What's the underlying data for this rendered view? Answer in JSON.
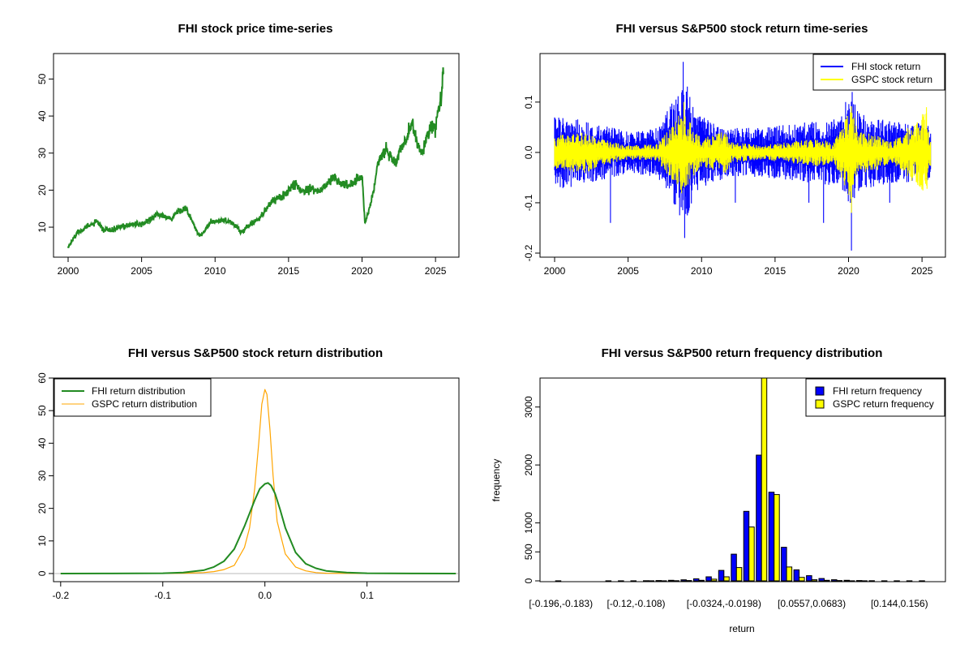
{
  "chart_data": [
    {
      "type": "line",
      "title": "FHI stock price time-series",
      "xlabel": "",
      "ylabel": "",
      "xlim": [
        2000,
        2025.6
      ],
      "ylim": [
        3,
        56
      ],
      "x_ticks": [
        2000,
        2005,
        2010,
        2015,
        2020,
        2025
      ],
      "y_ticks": [
        10,
        20,
        30,
        40,
        50
      ],
      "series": [
        {
          "color": "#228B22",
          "x": [
            2000.0,
            2000.3,
            2000.6,
            2001.0,
            2001.5,
            2002.0,
            2002.4,
            2002.7,
            2003.0,
            2003.5,
            2004.0,
            2004.5,
            2005.0,
            2005.5,
            2006.0,
            2006.5,
            2007.0,
            2007.5,
            2008.0,
            2008.4,
            2008.8,
            2009.0,
            2009.3,
            2009.6,
            2010.0,
            2010.5,
            2011.0,
            2011.5,
            2011.8,
            2012.0,
            2012.5,
            2013.0,
            2013.5,
            2014.0,
            2014.5,
            2015.0,
            2015.5,
            2016.0,
            2016.5,
            2017.0,
            2017.5,
            2018.0,
            2018.5,
            2019.0,
            2019.5,
            2020.0,
            2020.2,
            2020.5,
            2020.8,
            2021.0,
            2021.3,
            2021.6,
            2022.0,
            2022.3,
            2022.6,
            2023.0,
            2023.4,
            2023.7,
            2024.0,
            2024.3,
            2024.6,
            2025.0,
            2025.2,
            2025.4,
            2025.55
          ],
          "y": [
            4.5,
            6.5,
            8.5,
            9.5,
            10.5,
            11.5,
            9.0,
            9.5,
            9.0,
            10.0,
            10.5,
            11.0,
            10.5,
            12.0,
            13.5,
            13.0,
            12.0,
            14.5,
            15.0,
            12.0,
            8.5,
            7.5,
            9.0,
            11.0,
            11.5,
            12.0,
            11.5,
            10.0,
            8.5,
            9.5,
            11.0,
            12.5,
            15.0,
            17.5,
            18.0,
            20.0,
            21.5,
            19.5,
            21.0,
            19.5,
            21.0,
            23.5,
            22.0,
            21.0,
            22.5,
            24.0,
            11.0,
            15.0,
            20.0,
            26.0,
            29.0,
            31.0,
            29.0,
            27.0,
            31.0,
            33.0,
            38.5,
            33.0,
            30.0,
            33.0,
            36.0,
            37.0,
            42.0,
            44.0,
            54.0
          ]
        }
      ]
    },
    {
      "type": "line",
      "title": "FHI versus S&P500 stock return time-series",
      "xlabel": "",
      "ylabel": "",
      "xlim": [
        2000,
        2025.6
      ],
      "ylim": [
        -0.2,
        0.19
      ],
      "x_ticks": [
        2000,
        2005,
        2010,
        2015,
        2020,
        2025
      ],
      "y_ticks": [
        -0.2,
        -0.1,
        0.0,
        0.1
      ],
      "y_tick_labels": [
        "-0.2",
        "-0.1",
        "0.0",
        "0.1"
      ],
      "legend_position": "top-right",
      "series": [
        {
          "name": "FHI stock return",
          "color": "#0000FF",
          "volatility_x": [
            2000,
            2002,
            2003,
            2005,
            2007,
            2008.5,
            2009.0,
            2009.5,
            2010.5,
            2012,
            2014,
            2016,
            2018,
            2019.5,
            2020.2,
            2020.6,
            2021.5,
            2023,
            2025.5
          ],
          "volatility_y": [
            0.055,
            0.045,
            0.04,
            0.03,
            0.035,
            0.09,
            0.1,
            0.06,
            0.045,
            0.035,
            0.035,
            0.04,
            0.045,
            0.05,
            0.08,
            0.06,
            0.05,
            0.045,
            0.04
          ],
          "spikes_x": [
            2003.8,
            2008.75,
            2008.85,
            2009.1,
            2012.3,
            2017.3,
            2018.3,
            2019.8,
            2020.2,
            2020.25,
            2022.8
          ],
          "spikes_y": [
            -0.14,
            0.18,
            -0.17,
            -0.12,
            -0.1,
            -0.1,
            -0.14,
            0.1,
            -0.195,
            0.12,
            -0.1
          ]
        },
        {
          "name": "GSPC stock return",
          "color": "#FFFF00",
          "volatility_x": [
            2000,
            2002,
            2003,
            2005,
            2007,
            2008.7,
            2009.3,
            2010,
            2011.6,
            2012,
            2014,
            2018,
            2019,
            2020.2,
            2020.6,
            2022,
            2023,
            2025.3,
            2025.5
          ],
          "volatility_y": [
            0.025,
            0.03,
            0.02,
            0.01,
            0.012,
            0.06,
            0.04,
            0.02,
            0.03,
            0.015,
            0.01,
            0.02,
            0.015,
            0.07,
            0.03,
            0.025,
            0.015,
            0.06,
            0.02
          ],
          "spikes_x": [
            2008.8,
            2020.2,
            2025.3
          ],
          "spikes_y": [
            0.1,
            -0.12,
            0.09
          ]
        }
      ]
    },
    {
      "type": "line",
      "title": "FHI versus S&P500 stock return distribution",
      "xlabel": "",
      "ylabel": "",
      "xlim": [
        -0.207,
        0.19
      ],
      "ylim": [
        -2.5,
        60
      ],
      "x_ticks": [
        -0.2,
        -0.1,
        0.0,
        0.1
      ],
      "x_tick_labels": [
        "-0.2",
        "-0.1",
        "0.0",
        "0.1"
      ],
      "y_ticks": [
        0,
        10,
        20,
        30,
        40,
        50,
        60
      ],
      "legend_position": "top-left",
      "series": [
        {
          "name": "FHI return distribution",
          "color": "#228B22",
          "x": [
            -0.2,
            -0.15,
            -0.1,
            -0.08,
            -0.06,
            -0.05,
            -0.04,
            -0.03,
            -0.02,
            -0.015,
            -0.01,
            -0.005,
            0.0,
            0.003,
            0.006,
            0.01,
            0.015,
            0.02,
            0.03,
            0.04,
            0.05,
            0.06,
            0.08,
            0.1,
            0.15,
            0.187
          ],
          "y": [
            0,
            0.02,
            0.1,
            0.3,
            1.0,
            2.0,
            3.8,
            7.5,
            14.5,
            18.5,
            22.5,
            26.0,
            27.5,
            27.8,
            27.0,
            24.5,
            19.5,
            14.0,
            6.5,
            3.0,
            1.6,
            0.8,
            0.3,
            0.1,
            0.02,
            0
          ]
        },
        {
          "name": "GSPC return distribution",
          "color": "#FFA500",
          "x": [
            -0.2,
            -0.15,
            -0.1,
            -0.08,
            -0.06,
            -0.05,
            -0.04,
            -0.03,
            -0.02,
            -0.015,
            -0.01,
            -0.006,
            -0.003,
            0.0,
            0.002,
            0.005,
            0.008,
            0.012,
            0.02,
            0.03,
            0.04,
            0.05,
            0.06,
            0.08,
            0.1,
            0.15,
            0.187
          ],
          "y": [
            0,
            0.01,
            0.03,
            0.1,
            0.3,
            0.6,
            1.2,
            2.5,
            8.0,
            14.0,
            26.0,
            40.0,
            52.0,
            56.5,
            55.0,
            44.0,
            30.0,
            16.0,
            6.0,
            2.0,
            0.8,
            0.3,
            0.1,
            0.04,
            0.01,
            0,
            0
          ]
        }
      ]
    },
    {
      "type": "bar",
      "title": "FHI versus S&P500 return frequency distribution",
      "xlabel": "return",
      "ylabel": "frequency",
      "ylim": [
        0,
        3500
      ],
      "y_ticks": [
        0,
        500,
        1000,
        2000,
        3000
      ],
      "legend_position": "top-right",
      "bin_count": 30,
      "x_tick_labels": [
        "[-0.196,-0.183)",
        "[-0.12,-0.108)",
        "[-0.0324,-0.0198)",
        "[0.0557,0.0683)",
        "[0.144,0.156)"
      ],
      "x_tick_bins": [
        0,
        6,
        13,
        20,
        27
      ],
      "series": [
        {
          "name": "FHI return frequency",
          "color": "#0000FF",
          "values": [
            1,
            0,
            0,
            0,
            1,
            1,
            2,
            3,
            5,
            10,
            18,
            35,
            70,
            180,
            460,
            1200,
            2170,
            1530,
            580,
            190,
            90,
            40,
            20,
            10,
            5,
            3,
            2,
            1,
            1,
            1
          ]
        },
        {
          "name": "GSPC return frequency",
          "color": "#FFFF00",
          "values": [
            0,
            0,
            0,
            0,
            0,
            0,
            0,
            1,
            1,
            3,
            5,
            10,
            30,
            70,
            230,
            930,
            3500,
            1490,
            240,
            60,
            20,
            10,
            5,
            2,
            1,
            0,
            0,
            0,
            0,
            0
          ]
        }
      ]
    }
  ]
}
